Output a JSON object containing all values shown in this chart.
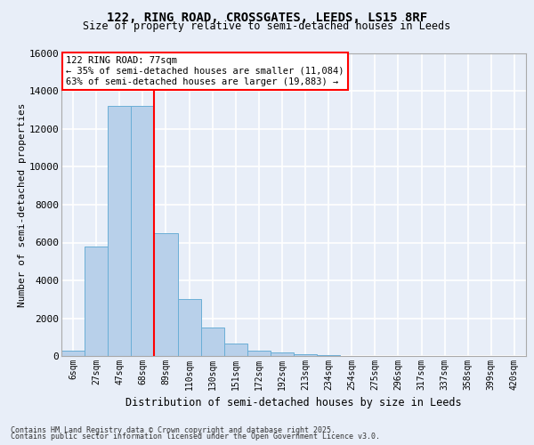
{
  "title_line1": "122, RING ROAD, CROSSGATES, LEEDS, LS15 8RF",
  "title_line2": "Size of property relative to semi-detached houses in Leeds",
  "xlabel": "Distribution of semi-detached houses by size in Leeds",
  "ylabel": "Number of semi-detached properties",
  "bar_labels": [
    "6sqm",
    "27sqm",
    "47sqm",
    "68sqm",
    "89sqm",
    "110sqm",
    "130sqm",
    "151sqm",
    "172sqm",
    "192sqm",
    "213sqm",
    "234sqm",
    "254sqm",
    "275sqm",
    "296sqm",
    "317sqm",
    "337sqm",
    "358sqm",
    "399sqm",
    "420sqm"
  ],
  "bar_values": [
    300,
    5800,
    13200,
    13200,
    6500,
    3000,
    1500,
    650,
    300,
    200,
    100,
    30,
    10,
    0,
    0,
    0,
    0,
    0,
    0,
    0
  ],
  "bar_color": "#b8d0ea",
  "bar_edgecolor": "#6aaed6",
  "red_line_x": 3.5,
  "annotation_text": "122 RING ROAD: 77sqm\n← 35% of semi-detached houses are smaller (11,084)\n63% of semi-detached houses are larger (19,883) →",
  "ylim": [
    0,
    16000
  ],
  "yticks": [
    0,
    2000,
    4000,
    6000,
    8000,
    10000,
    12000,
    14000,
    16000
  ],
  "background_color": "#e8eef8",
  "plot_background": "#e8eef8",
  "grid_color": "#ffffff",
  "footer_line1": "Contains HM Land Registry data © Crown copyright and database right 2025.",
  "footer_line2": "Contains public sector information licensed under the Open Government Licence v3.0."
}
